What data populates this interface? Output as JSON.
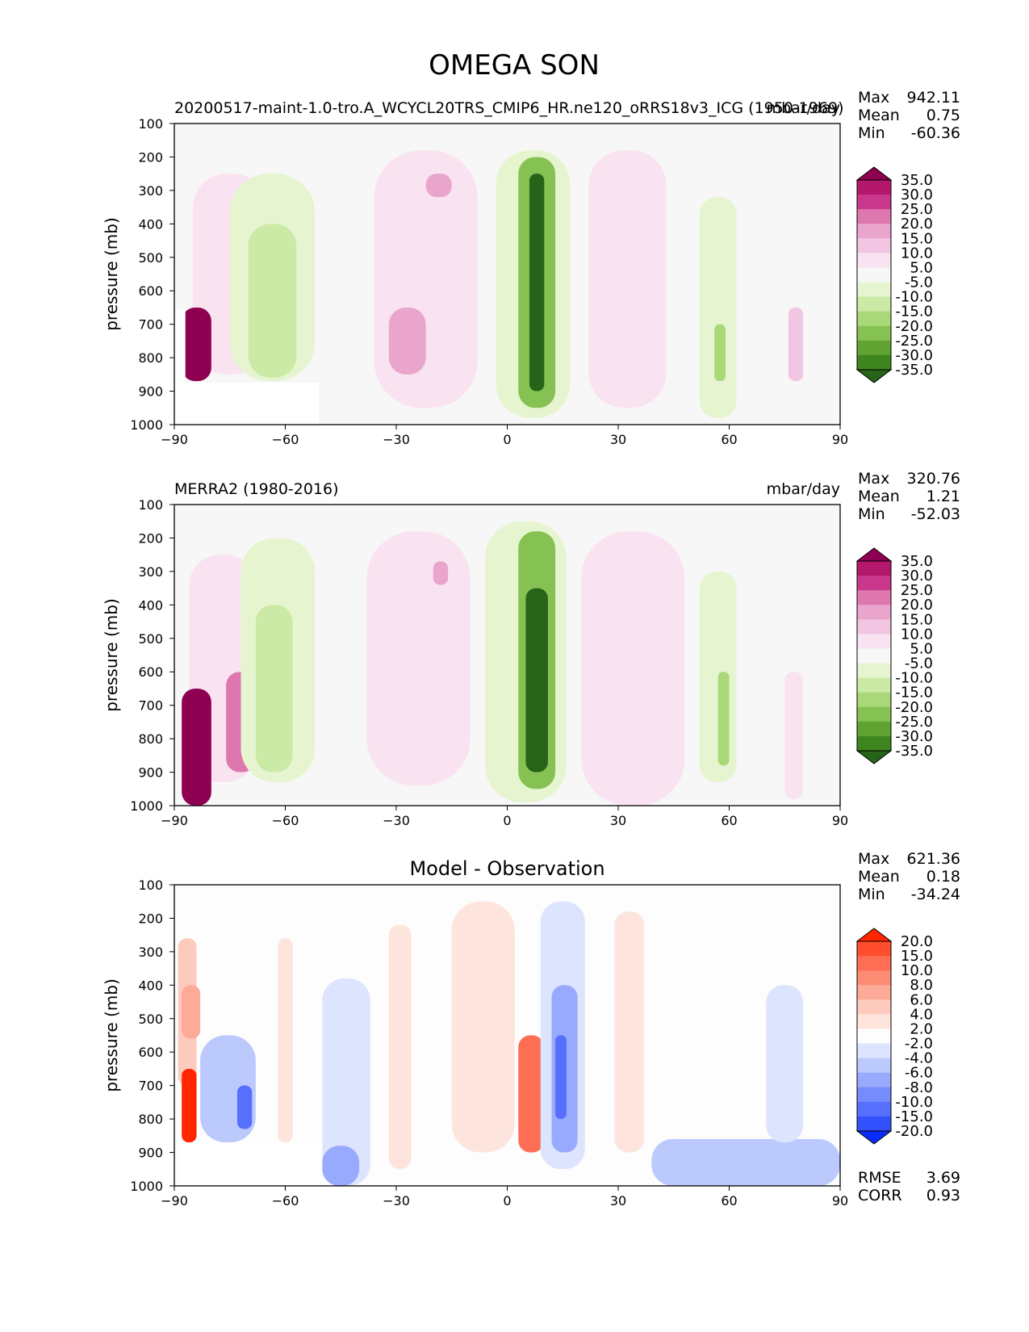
{
  "figure_title": "OMEGA SON",
  "chart_data": [
    {
      "type": "heatmap",
      "title": "",
      "left_label": "20200517-maint-1.0-tro.A_WCYCL20TRS_CMIP6_HR.ne120_oRRS18v3_ICG (1950-1969)",
      "units": "mbar/day",
      "xlabel": "",
      "ylabel": "pressure (mb)",
      "xlim": [
        -90,
        90
      ],
      "ylim": [
        1000,
        100
      ],
      "x_ticks": [
        "−90",
        "−60",
        "−30",
        "0",
        "30",
        "60",
        "90"
      ],
      "y_ticks": [
        "100",
        "200",
        "300",
        "400",
        "500",
        "600",
        "700",
        "800",
        "900",
        "1000"
      ],
      "stats": {
        "max_label": "Max",
        "max": "942.11",
        "mean_label": "Mean",
        "mean": "0.75",
        "min_label": "Min",
        "min": "-60.36"
      },
      "colorbar": {
        "levels": [
          "35.0",
          "30.0",
          "25.0",
          "20.0",
          "15.0",
          "10.0",
          "5.0",
          "-5.0",
          "-10.0",
          "-15.0",
          "-20.0",
          "-25.0",
          "-30.0",
          "-35.0"
        ],
        "colors": [
          "#8e0152",
          "#b3186d",
          "#c9388c",
          "#de77ae",
          "#eaa5cd",
          "#f2c6e2",
          "#f9e3f0",
          "#f7f7f7",
          "#e6f5d0",
          "#cbeaa5",
          "#a8d878",
          "#86c253",
          "#61a332",
          "#3e8520",
          "#276419"
        ]
      },
      "regions": [
        {
          "lon": [
            -85,
            -65
          ],
          "p": [
            250,
            850
          ],
          "value": 8
        },
        {
          "lon": [
            -88,
            -80
          ],
          "p": [
            650,
            870
          ],
          "value": 40
        },
        {
          "lon": [
            -75,
            -52
          ],
          "p": [
            250,
            870
          ],
          "value": -8
        },
        {
          "lon": [
            -70,
            -57
          ],
          "p": [
            400,
            860
          ],
          "value": -14
        },
        {
          "lon": [
            -36,
            -8
          ],
          "p": [
            180,
            950
          ],
          "value": 8
        },
        {
          "lon": [
            -22,
            -15
          ],
          "p": [
            250,
            320
          ],
          "value": 18
        },
        {
          "lon": [
            -32,
            -22
          ],
          "p": [
            650,
            850
          ],
          "value": 15
        },
        {
          "lon": [
            -3,
            17
          ],
          "p": [
            180,
            980
          ],
          "value": -10
        },
        {
          "lon": [
            3,
            13
          ],
          "p": [
            200,
            950
          ],
          "value": -22
        },
        {
          "lon": [
            6,
            10
          ],
          "p": [
            250,
            900
          ],
          "value": -36
        },
        {
          "lon": [
            22,
            43
          ],
          "p": [
            180,
            950
          ],
          "value": 7
        },
        {
          "lon": [
            52,
            62
          ],
          "p": [
            320,
            980
          ],
          "value": -7
        },
        {
          "lon": [
            56,
            59
          ],
          "p": [
            700,
            870
          ],
          "value": -16
        },
        {
          "lon": [
            76,
            80
          ],
          "p": [
            650,
            870
          ],
          "value": 10
        }
      ],
      "missing": [
        {
          "lon": [
            -90,
            -87
          ],
          "p": [
            655,
            1000
          ]
        },
        {
          "lon": [
            -87,
            -51
          ],
          "p": [
            875,
            1000
          ]
        }
      ]
    },
    {
      "type": "heatmap",
      "title": "",
      "left_label": "MERRA2 (1980-2016)",
      "units": "mbar/day",
      "xlabel": "",
      "ylabel": "pressure (mb)",
      "xlim": [
        -90,
        90
      ],
      "ylim": [
        1000,
        100
      ],
      "x_ticks": [
        "−90",
        "−60",
        "−30",
        "0",
        "30",
        "60",
        "90"
      ],
      "y_ticks": [
        "100",
        "200",
        "300",
        "400",
        "500",
        "600",
        "700",
        "800",
        "900",
        "1000"
      ],
      "stats": {
        "max_label": "Max",
        "max": "320.76",
        "mean_label": "Mean",
        "mean": "1.21",
        "min_label": "Min",
        "min": "-52.03"
      },
      "colorbar": {
        "levels": [
          "35.0",
          "30.0",
          "25.0",
          "20.0",
          "15.0",
          "10.0",
          "5.0",
          "-5.0",
          "-10.0",
          "-15.0",
          "-20.0",
          "-25.0",
          "-30.0",
          "-35.0"
        ],
        "colors": [
          "#8e0152",
          "#b3186d",
          "#c9388c",
          "#de77ae",
          "#eaa5cd",
          "#f2c6e2",
          "#f9e3f0",
          "#f7f7f7",
          "#e6f5d0",
          "#cbeaa5",
          "#a8d878",
          "#86c253",
          "#61a332",
          "#3e8520",
          "#276419"
        ]
      },
      "regions": [
        {
          "lon": [
            -86,
            -68
          ],
          "p": [
            250,
            930
          ],
          "value": 8
        },
        {
          "lon": [
            -88,
            -80
          ],
          "p": [
            650,
            1000
          ],
          "value": 40
        },
        {
          "lon": [
            -76,
            -68
          ],
          "p": [
            600,
            900
          ],
          "value": 24
        },
        {
          "lon": [
            -72,
            -52
          ],
          "p": [
            200,
            930
          ],
          "value": -8
        },
        {
          "lon": [
            -68,
            -58
          ],
          "p": [
            400,
            900
          ],
          "value": -14
        },
        {
          "lon": [
            -38,
            -10
          ],
          "p": [
            180,
            940
          ],
          "value": 8
        },
        {
          "lon": [
            -20,
            -16
          ],
          "p": [
            270,
            340
          ],
          "value": 18
        },
        {
          "lon": [
            -6,
            16
          ],
          "p": [
            150,
            990
          ],
          "value": -10
        },
        {
          "lon": [
            3,
            13
          ],
          "p": [
            180,
            950
          ],
          "value": -22
        },
        {
          "lon": [
            5,
            11
          ],
          "p": [
            350,
            900
          ],
          "value": -36
        },
        {
          "lon": [
            20,
            48
          ],
          "p": [
            180,
            1000
          ],
          "value": 7
        },
        {
          "lon": [
            52,
            62
          ],
          "p": [
            300,
            930
          ],
          "value": -7
        },
        {
          "lon": [
            57,
            60
          ],
          "p": [
            600,
            880
          ],
          "value": -16
        },
        {
          "lon": [
            75,
            80
          ],
          "p": [
            600,
            980
          ],
          "value": 6
        }
      ],
      "missing": []
    },
    {
      "type": "heatmap",
      "title": "Model - Observation",
      "left_label": "",
      "units": "",
      "xlabel": "",
      "ylabel": "pressure (mb)",
      "xlim": [
        -90,
        90
      ],
      "ylim": [
        1000,
        100
      ],
      "x_ticks": [
        "−90",
        "−60",
        "−30",
        "0",
        "30",
        "60",
        "90"
      ],
      "y_ticks": [
        "100",
        "200",
        "300",
        "400",
        "500",
        "600",
        "700",
        "800",
        "900",
        "1000"
      ],
      "stats": {
        "max_label": "Max",
        "max": "621.36",
        "mean_label": "Mean",
        "mean": "0.18",
        "min_label": "Min",
        "min": "-34.24"
      },
      "extra_stats": {
        "rmse_label": "RMSE",
        "rmse": "3.69",
        "corr_label": "CORR",
        "corr": "0.93"
      },
      "colorbar": {
        "levels": [
          "20.0",
          "15.0",
          "10.0",
          "8.0",
          "6.0",
          "4.0",
          "2.0",
          "-2.0",
          "-4.0",
          "-6.0",
          "-8.0",
          "-10.0",
          "-15.0",
          "-20.0"
        ],
        "colors": [
          "#ff2600",
          "#ff4e2e",
          "#fd6e54",
          "#fd8c75",
          "#fdaa98",
          "#fdcbbe",
          "#fde5de",
          "#fdfdfd",
          "#dde4fd",
          "#bcc9fd",
          "#98aafd",
          "#768cfd",
          "#566ffd",
          "#3350fd",
          "#0b2cfd"
        ]
      },
      "regions": [
        {
          "lon": [
            -89,
            -84
          ],
          "p": [
            260,
            700
          ],
          "value": 4
        },
        {
          "lon": [
            -88,
            -83
          ],
          "p": [
            400,
            560
          ],
          "value": 6
        },
        {
          "lon": [
            -88,
            -84
          ],
          "p": [
            650,
            870
          ],
          "value": 25
        },
        {
          "lon": [
            -83,
            -68
          ],
          "p": [
            550,
            870
          ],
          "value": -5
        },
        {
          "lon": [
            -73,
            -69
          ],
          "p": [
            700,
            830
          ],
          "value": -12
        },
        {
          "lon": [
            -62,
            -58
          ],
          "p": [
            260,
            870
          ],
          "value": 3
        },
        {
          "lon": [
            -50,
            -37
          ],
          "p": [
            380,
            1000
          ],
          "value": -3
        },
        {
          "lon": [
            -50,
            -40
          ],
          "p": [
            880,
            1000
          ],
          "value": -7
        },
        {
          "lon": [
            -32,
            -26
          ],
          "p": [
            220,
            950
          ],
          "value": 3
        },
        {
          "lon": [
            -15,
            2
          ],
          "p": [
            150,
            900
          ],
          "value": 3
        },
        {
          "lon": [
            3,
            10
          ],
          "p": [
            550,
            900
          ],
          "value": 10
        },
        {
          "lon": [
            9,
            21
          ],
          "p": [
            150,
            950
          ],
          "value": -4
        },
        {
          "lon": [
            12,
            19
          ],
          "p": [
            400,
            900
          ],
          "value": -8
        },
        {
          "lon": [
            13,
            16
          ],
          "p": [
            550,
            800
          ],
          "value": -11
        },
        {
          "lon": [
            29,
            37
          ],
          "p": [
            180,
            900
          ],
          "value": 3
        },
        {
          "lon": [
            39,
            90
          ],
          "p": [
            860,
            1000
          ],
          "value": -6
        },
        {
          "lon": [
            70,
            80
          ],
          "p": [
            400,
            870
          ],
          "value": -3
        }
      ],
      "missing": [
        {
          "lon": [
            -89,
            -84
          ],
          "p": [
            870,
            1000
          ]
        },
        {
          "lon": [
            -84,
            -51
          ],
          "p": [
            870,
            1000
          ]
        }
      ]
    }
  ]
}
